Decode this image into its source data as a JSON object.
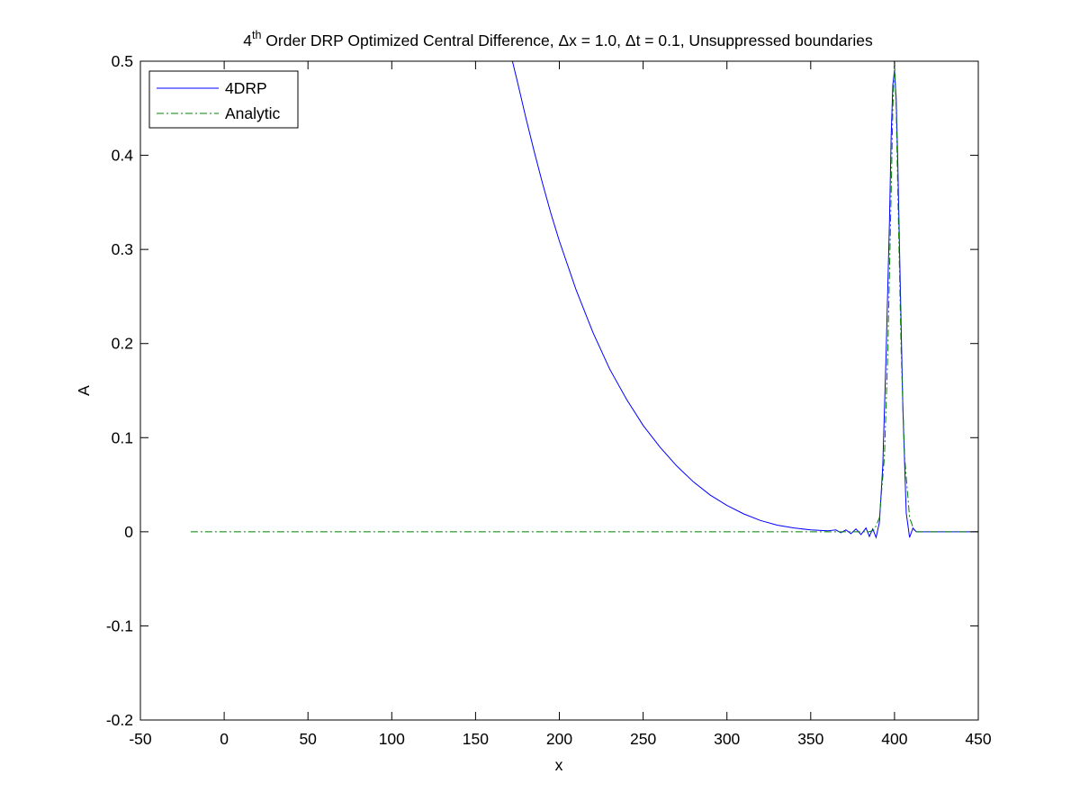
{
  "chart_data": {
    "type": "line",
    "title": {
      "prefix": "4",
      "superscript": "th",
      "text": " Order DRP Optimized Central Difference, Δx = 1.0, Δt = 0.1, Unsuppressed boundaries"
    },
    "xlabel": "x",
    "ylabel": "A",
    "xlim": [
      -50,
      450
    ],
    "ylim": [
      -0.2,
      0.5
    ],
    "xticks": [
      -50,
      0,
      50,
      100,
      150,
      200,
      250,
      300,
      350,
      400,
      450
    ],
    "yticks": [
      -0.2,
      -0.1,
      0,
      0.1,
      0.2,
      0.3,
      0.4,
      0.5
    ],
    "xtick_labels": [
      "-50",
      "0",
      "50",
      "100",
      "150",
      "200",
      "250",
      "300",
      "350",
      "400",
      "450"
    ],
    "ytick_labels": [
      "-0.2",
      "-0.1",
      "0",
      "0.1",
      "0.2",
      "0.3",
      "0.4",
      "0.5"
    ],
    "grid": false,
    "box": true,
    "legend": {
      "placement": "top-left"
    },
    "series": [
      {
        "name": "4DRP",
        "color": "#0000ff",
        "style": "solid",
        "x": [
          172,
          175,
          180,
          185,
          190,
          195,
          200,
          210,
          220,
          230,
          240,
          250,
          260,
          270,
          280,
          290,
          300,
          310,
          320,
          330,
          340,
          350,
          360,
          365,
          368,
          371,
          374,
          377,
          380,
          383,
          385,
          387,
          389,
          391,
          393,
          395,
          397,
          398,
          399,
          400,
          401,
          402,
          403,
          405,
          407,
          409,
          411,
          413,
          415,
          420,
          430,
          440,
          450
        ],
        "y": [
          0.5,
          0.478,
          0.44,
          0.404,
          0.37,
          0.338,
          0.309,
          0.257,
          0.212,
          0.173,
          0.141,
          0.113,
          0.09,
          0.07,
          0.053,
          0.039,
          0.028,
          0.019,
          0.012,
          0.007,
          0.004,
          0.002,
          0.001,
          0.002,
          -0.001,
          0.002,
          -0.002,
          0.003,
          -0.003,
          0.004,
          -0.005,
          0.003,
          -0.006,
          0.01,
          0.07,
          0.19,
          0.33,
          0.42,
          0.475,
          0.49,
          0.46,
          0.39,
          0.3,
          0.13,
          0.02,
          -0.006,
          0.004,
          0.0,
          0.0,
          0.0,
          0.0,
          0.0,
          0.0
        ]
      },
      {
        "name": "Analytic",
        "color": "#008000",
        "style": "dash-dot",
        "x": [
          -20,
          385,
          388,
          391,
          394,
          396,
          398,
          399,
          400,
          401,
          402,
          404,
          406,
          409,
          412,
          450
        ],
        "y": [
          0,
          0,
          0.002,
          0.015,
          0.08,
          0.19,
          0.36,
          0.45,
          0.5,
          0.45,
          0.36,
          0.19,
          0.08,
          0.015,
          0,
          0
        ]
      }
    ]
  }
}
